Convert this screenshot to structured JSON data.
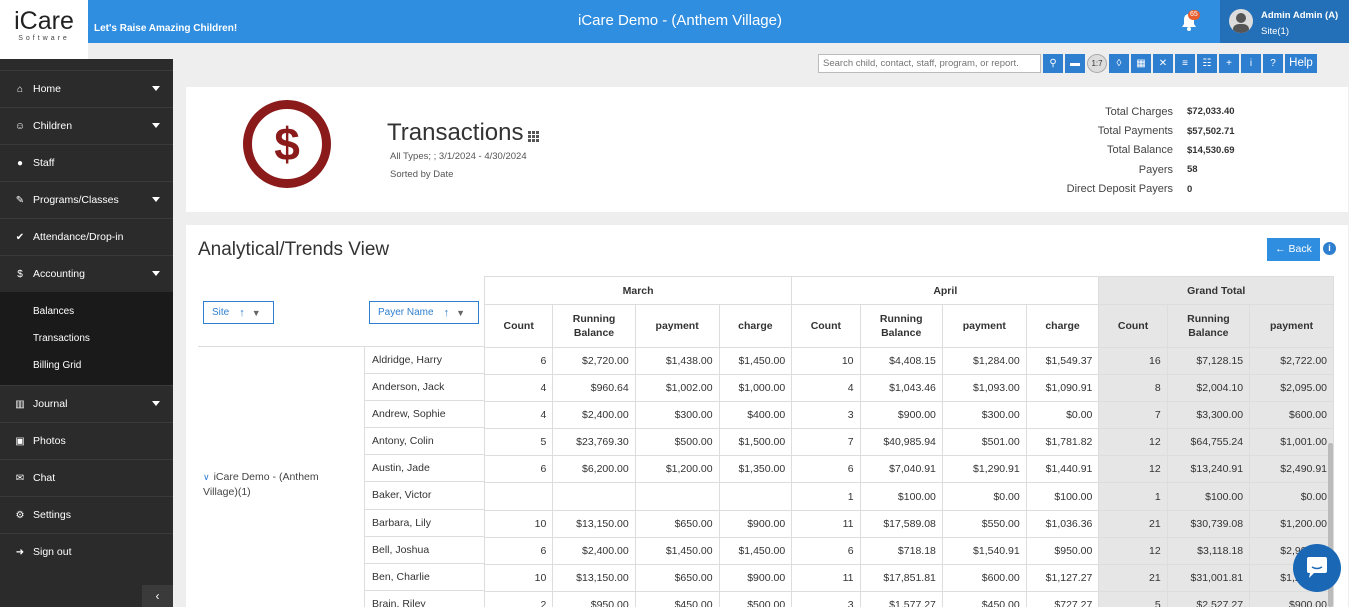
{
  "header": {
    "logo_main": "iCare",
    "logo_sub": "Software",
    "tagline": "Let's Raise Amazing Children!",
    "title": "iCare Demo - (Anthem Village)",
    "notification_count": "65",
    "user_name": "Admin Admin (A)",
    "user_site": "Site(1)"
  },
  "sidebar": {
    "items": [
      {
        "label": "Home",
        "icon": "home-icon",
        "caret": true
      },
      {
        "label": "Children",
        "icon": "smile-icon",
        "caret": true
      },
      {
        "label": "Staff",
        "icon": "user-icon",
        "caret": false
      },
      {
        "label": "Programs/Classes",
        "icon": "pencil-icon",
        "caret": true
      },
      {
        "label": "Attendance/Drop-in",
        "icon": "check-circle-icon",
        "caret": false
      },
      {
        "label": "Accounting",
        "icon": "dollar-icon",
        "caret": true
      }
    ],
    "accounting_sub": [
      "Balances",
      "Transactions",
      "Billing Grid"
    ],
    "items2": [
      {
        "label": "Journal",
        "icon": "bar-chart-icon",
        "caret": true
      },
      {
        "label": "Photos",
        "icon": "photo-icon",
        "caret": false
      },
      {
        "label": "Chat",
        "icon": "chat-icon",
        "caret": false
      },
      {
        "label": "Settings",
        "icon": "gear-icon",
        "caret": false
      },
      {
        "label": "Sign out",
        "icon": "sign-out-icon",
        "caret": false
      }
    ],
    "collapse_glyph": "‹"
  },
  "toolbar": {
    "search_placeholder": "Search child, contact, staff, program, or report.",
    "ratio_label": "1:7",
    "help_label": "Help"
  },
  "summary": {
    "title": "Transactions",
    "subtitle": "All Types; ; 3/1/2024 - 4/30/2024",
    "sorted": "Sorted by Date",
    "stats": [
      {
        "label": "Total Charges",
        "value": "$72,033.40"
      },
      {
        "label": "Total Payments",
        "value": "$57,502.71"
      },
      {
        "label": "Total Balance",
        "value": "$14,530.69"
      },
      {
        "label": "Payers",
        "value": "58"
      },
      {
        "label": "Direct Deposit Payers",
        "value": "0"
      }
    ]
  },
  "analytical": {
    "title": "Analytical/Trends View",
    "back_label": "← Back",
    "filter_site": "Site",
    "filter_payer": "Payer Name",
    "site_group": "iCare Demo - (Anthem Village)(1)",
    "months": [
      "March",
      "April",
      "Grand Total"
    ],
    "sub_headers": [
      "Count",
      "Running Balance",
      "payment",
      "charge"
    ],
    "rows": [
      {
        "payer": "Aldridge, Harry",
        "vals": [
          "6",
          "$2,720.00",
          "$1,438.00",
          "$1,450.00",
          "10",
          "$4,408.15",
          "$1,284.00",
          "$1,549.37",
          "16",
          "$7,128.15",
          "$2,722.00"
        ]
      },
      {
        "payer": "Anderson, Jack",
        "vals": [
          "4",
          "$960.64",
          "$1,002.00",
          "$1,000.00",
          "4",
          "$1,043.46",
          "$1,093.00",
          "$1,090.91",
          "8",
          "$2,004.10",
          "$2,095.00"
        ]
      },
      {
        "payer": "Andrew, Sophie",
        "vals": [
          "4",
          "$2,400.00",
          "$300.00",
          "$400.00",
          "3",
          "$900.00",
          "$300.00",
          "$0.00",
          "7",
          "$3,300.00",
          "$600.00"
        ]
      },
      {
        "payer": "Antony, Colin",
        "vals": [
          "5",
          "$23,769.30",
          "$500.00",
          "$1,500.00",
          "7",
          "$40,985.94",
          "$501.00",
          "$1,781.82",
          "12",
          "$64,755.24",
          "$1,001.00"
        ]
      },
      {
        "payer": "Austin, Jade",
        "vals": [
          "6",
          "$6,200.00",
          "$1,200.00",
          "$1,350.00",
          "6",
          "$7,040.91",
          "$1,290.91",
          "$1,440.91",
          "12",
          "$13,240.91",
          "$2,490.91"
        ]
      },
      {
        "payer": "Baker, Victor",
        "vals": [
          "",
          "",
          "",
          "",
          "1",
          "$100.00",
          "$0.00",
          "$100.00",
          "1",
          "$100.00",
          "$0.00"
        ]
      },
      {
        "payer": "Barbara, Lily",
        "vals": [
          "10",
          "$13,150.00",
          "$650.00",
          "$900.00",
          "11",
          "$17,589.08",
          "$550.00",
          "$1,036.36",
          "21",
          "$30,739.08",
          "$1,200.00"
        ]
      },
      {
        "payer": "Bell, Joshua",
        "vals": [
          "6",
          "$2,400.00",
          "$1,450.00",
          "$1,450.00",
          "6",
          "$718.18",
          "$1,540.91",
          "$950.00",
          "12",
          "$3,118.18",
          "$2,990.91"
        ]
      },
      {
        "payer": "Ben, Charlie",
        "vals": [
          "10",
          "$13,150.00",
          "$650.00",
          "$900.00",
          "11",
          "$17,851.81",
          "$600.00",
          "$1,127.27",
          "21",
          "$31,001.81",
          "$1,250.00"
        ]
      },
      {
        "payer": "Brain, Riley",
        "vals": [
          "2",
          "$950.00",
          "$450.00",
          "$500.00",
          "3",
          "$1,577.27",
          "$450.00",
          "$727.27",
          "5",
          "$2,527.27",
          "$900.00"
        ]
      }
    ]
  }
}
